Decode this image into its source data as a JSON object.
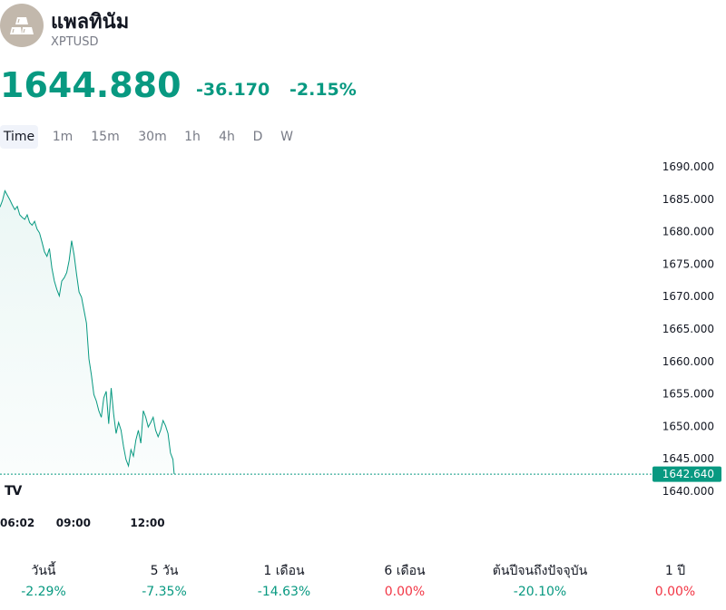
{
  "symbol": {
    "name": "แพลทินัม",
    "ticker": "XPTUSD",
    "logo_icon": "platinum-bars-icon"
  },
  "quote": {
    "last": "1644.880",
    "change": "-36.170",
    "change_pct": "-2.15%",
    "color": "#089981"
  },
  "tabs": [
    {
      "label": "Time",
      "active": true
    },
    {
      "label": "1m",
      "active": false
    },
    {
      "label": "15m",
      "active": false
    },
    {
      "label": "30m",
      "active": false
    },
    {
      "label": "1h",
      "active": false
    },
    {
      "label": "4h",
      "active": false
    },
    {
      "label": "D",
      "active": false
    },
    {
      "label": "W",
      "active": false
    }
  ],
  "chart_data": {
    "type": "area",
    "ylim": [
      1638,
      1692
    ],
    "y_ticks": [
      "1690.000",
      "1685.000",
      "1680.000",
      "1675.000",
      "1670.000",
      "1665.000",
      "1660.000",
      "1655.000",
      "1650.000",
      "1645.000",
      "1640.000"
    ],
    "x_ticks": [
      {
        "label": "06:02",
        "x": 0
      },
      {
        "label": "09:00",
        "x": 2.97
      },
      {
        "label": "12:00",
        "x": 5.97
      }
    ],
    "xlim": [
      0,
      26.3
    ],
    "x_unit": "hours from 06:02",
    "line_color": "#089981",
    "last_value": 1642.64,
    "last_value_label": "1642.640",
    "series": [
      {
        "values": [
          [
            0.0,
            1683.8
          ],
          [
            0.1,
            1684.8
          ],
          [
            0.2,
            1686.3
          ],
          [
            0.3,
            1685.6
          ],
          [
            0.4,
            1684.9
          ],
          [
            0.5,
            1684.1
          ],
          [
            0.6,
            1683.4
          ],
          [
            0.7,
            1683.9
          ],
          [
            0.8,
            1682.6
          ],
          [
            0.9,
            1682.2
          ],
          [
            1.0,
            1681.9
          ],
          [
            1.1,
            1682.6
          ],
          [
            1.2,
            1681.4
          ],
          [
            1.3,
            1681.0
          ],
          [
            1.4,
            1681.6
          ],
          [
            1.5,
            1680.4
          ],
          [
            1.6,
            1679.8
          ],
          [
            1.7,
            1678.4
          ],
          [
            1.8,
            1676.9
          ],
          [
            1.9,
            1676.2
          ],
          [
            2.0,
            1677.4
          ],
          [
            2.1,
            1674.4
          ],
          [
            2.2,
            1672.4
          ],
          [
            2.3,
            1671.1
          ],
          [
            2.4,
            1670.1
          ],
          [
            2.5,
            1672.4
          ],
          [
            2.6,
            1672.9
          ],
          [
            2.7,
            1673.7
          ],
          [
            2.8,
            1675.6
          ],
          [
            2.9,
            1678.6
          ],
          [
            3.0,
            1676.4
          ],
          [
            3.1,
            1673.4
          ],
          [
            3.2,
            1670.7
          ],
          [
            3.3,
            1669.9
          ],
          [
            3.4,
            1667.9
          ],
          [
            3.5,
            1665.9
          ],
          [
            3.6,
            1660.4
          ],
          [
            3.7,
            1657.9
          ],
          [
            3.8,
            1654.9
          ],
          [
            3.9,
            1653.9
          ],
          [
            4.0,
            1652.4
          ],
          [
            4.1,
            1651.4
          ],
          [
            4.2,
            1654.4
          ],
          [
            4.3,
            1655.4
          ],
          [
            4.4,
            1650.4
          ],
          [
            4.5,
            1655.9
          ],
          [
            4.6,
            1651.9
          ],
          [
            4.7,
            1648.9
          ],
          [
            4.8,
            1650.6
          ],
          [
            4.9,
            1649.4
          ],
          [
            5.0,
            1646.9
          ],
          [
            5.1,
            1644.9
          ],
          [
            5.2,
            1643.9
          ],
          [
            5.3,
            1646.4
          ],
          [
            5.4,
            1645.4
          ],
          [
            5.5,
            1647.9
          ],
          [
            5.6,
            1649.4
          ],
          [
            5.7,
            1647.4
          ],
          [
            5.8,
            1652.4
          ],
          [
            5.9,
            1651.4
          ],
          [
            6.0,
            1649.9
          ],
          [
            6.1,
            1650.6
          ],
          [
            6.2,
            1651.4
          ],
          [
            6.3,
            1649.4
          ],
          [
            6.4,
            1648.4
          ],
          [
            6.5,
            1649.4
          ],
          [
            6.6,
            1650.9
          ],
          [
            6.7,
            1650.1
          ],
          [
            6.8,
            1648.9
          ],
          [
            6.9,
            1645.9
          ],
          [
            7.0,
            1644.9
          ],
          [
            7.05,
            1642.64
          ]
        ]
      }
    ]
  },
  "performance": [
    {
      "label": "วันนี้",
      "value": "-2.29%",
      "color": "#089981"
    },
    {
      "label": "5 วัน",
      "value": "-7.35%",
      "color": "#089981"
    },
    {
      "label": "1 เดือน",
      "value": "-14.63%",
      "color": "#089981"
    },
    {
      "label": "6 เดือน",
      "value": "0.00%",
      "color": "#f23645"
    },
    {
      "label": "ต้นปีจนถึงปัจจุบัน",
      "value": "-20.10%",
      "color": "#089981"
    },
    {
      "label": "1 ปี",
      "value": "0.00%",
      "color": "#f23645"
    }
  ]
}
